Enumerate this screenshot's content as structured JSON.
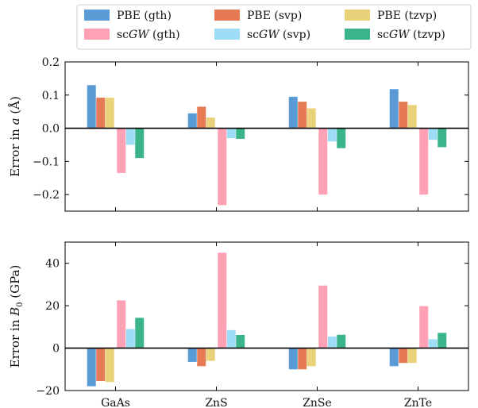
{
  "legend": [
    {
      "method": "PBE",
      "basis": "(gth)",
      "color": "#5b9bd5"
    },
    {
      "method": "scGW",
      "basis": "(gth)",
      "color": "#ffa1b4"
    },
    {
      "method": "PBE",
      "basis": "(svp)",
      "color": "#e57a55"
    },
    {
      "method": "scGW",
      "basis": "(svp)",
      "color": "#9fdcf6"
    },
    {
      "method": "PBE",
      "basis": "(tzvp)",
      "color": "#ead27a"
    },
    {
      "method": "scGW",
      "basis": "(tzvp)",
      "color": "#3bb48a"
    }
  ],
  "chart_data": [
    {
      "type": "bar",
      "ylabel": "Error in a (Å)",
      "ylim": [
        -0.25,
        0.2
      ],
      "yticks": [
        -0.2,
        -0.1,
        0.0,
        0.1,
        0.2
      ],
      "ytick_labels": [
        "−0.2",
        "−0.1",
        "0.0",
        "0.1",
        "0.2"
      ],
      "categories": [
        "GaAs",
        "ZnS",
        "ZnSe",
        "ZnTe"
      ],
      "series": [
        {
          "name": "PBE (gth)",
          "color": "#5b9bd5",
          "values": [
            0.13,
            0.045,
            0.095,
            0.118
          ]
        },
        {
          "name": "PBE (svp)",
          "color": "#e57a55",
          "values": [
            0.092,
            0.065,
            0.08,
            0.08
          ]
        },
        {
          "name": "PBE (tzvp)",
          "color": "#ead27a",
          "values": [
            0.092,
            0.032,
            0.06,
            0.07
          ]
        },
        {
          "name": "scGW (gth)",
          "color": "#ffa1b4",
          "values": [
            -0.135,
            -0.232,
            -0.2,
            -0.2
          ]
        },
        {
          "name": "scGW (svp)",
          "color": "#9fdcf6",
          "values": [
            -0.05,
            -0.03,
            -0.04,
            -0.035
          ]
        },
        {
          "name": "scGW (tzvp)",
          "color": "#3bb48a",
          "values": [
            -0.09,
            -0.032,
            -0.06,
            -0.057
          ]
        }
      ]
    },
    {
      "type": "bar",
      "ylabel": "Error in B0 (GPa)",
      "ylim": [
        -20,
        50
      ],
      "yticks": [
        -20,
        0,
        20,
        40
      ],
      "ytick_labels": [
        "−20",
        "0",
        "20",
        "40"
      ],
      "categories": [
        "GaAs",
        "ZnS",
        "ZnSe",
        "ZnTe"
      ],
      "series": [
        {
          "name": "PBE (gth)",
          "color": "#5b9bd5",
          "values": [
            -18,
            -6.5,
            -10,
            -8.5
          ]
        },
        {
          "name": "PBE (svp)",
          "color": "#e57a55",
          "values": [
            -15.5,
            -8.5,
            -10,
            -7
          ]
        },
        {
          "name": "PBE (tzvp)",
          "color": "#ead27a",
          "values": [
            -16,
            -6,
            -8.5,
            -7
          ]
        },
        {
          "name": "scGW (gth)",
          "color": "#ffa1b4",
          "values": [
            22.5,
            45,
            29.5,
            19.8
          ]
        },
        {
          "name": "scGW (svp)",
          "color": "#9fdcf6",
          "values": [
            9,
            8.5,
            5.5,
            4.2
          ]
        },
        {
          "name": "scGW (tzvp)",
          "color": "#3bb48a",
          "values": [
            14.3,
            6.2,
            6.3,
            7.2
          ]
        }
      ]
    }
  ]
}
